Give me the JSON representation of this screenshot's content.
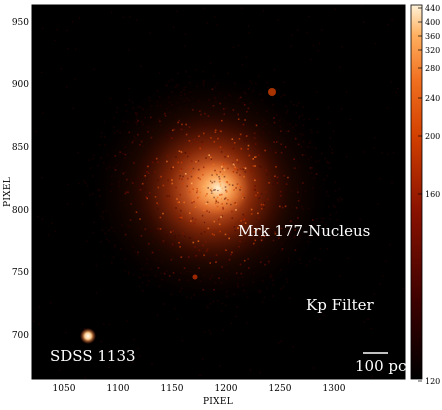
{
  "figure": {
    "xlabel": "PIXEL",
    "ylabel": "PIXEL",
    "x_ticks": [
      "1050",
      "1100",
      "1150",
      "1200",
      "1250",
      "1300"
    ],
    "y_ticks": [
      "700",
      "750",
      "800",
      "850",
      "900",
      "950"
    ],
    "colorbar_ticks": [
      "440",
      "400",
      "360",
      "320",
      "280",
      "240",
      "200",
      "160",
      "120"
    ],
    "labels": {
      "nucleus": "Mrk 177-Nucleus",
      "filter": "Kp Filter",
      "source": "SDSS 1133",
      "scalebar": "100 pc"
    },
    "colormap": [
      "#000000",
      "#3a0000",
      "#8a1200",
      "#d24000",
      "#f07020",
      "#ffb060",
      "#fff2d8"
    ]
  }
}
